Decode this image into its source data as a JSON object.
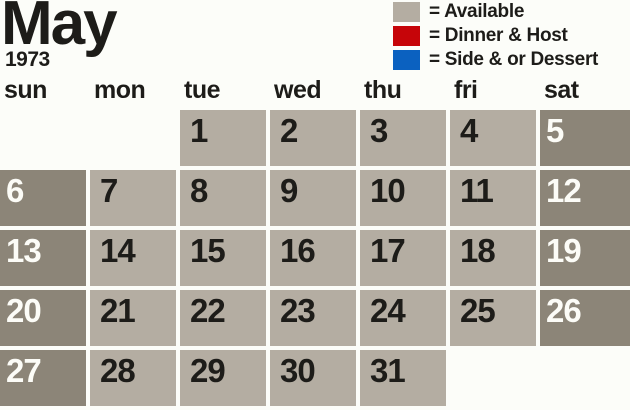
{
  "title": {
    "month": "May",
    "year": "1973"
  },
  "legend": {
    "items": [
      {
        "key": "available",
        "color": "#b4ada2",
        "label": "= Available"
      },
      {
        "key": "dinner-host",
        "color": "#c60509",
        "label": "= Dinner & Host"
      },
      {
        "key": "side-dessert",
        "color": "#0b61c0",
        "label": "= Side & or Dessert"
      }
    ]
  },
  "weekdays": [
    "sun",
    "mon",
    "tue",
    "wed",
    "thu",
    "fri",
    "sat"
  ],
  "colors": {
    "background": "#fcfdf9",
    "weekday_cell": "#b4ada2",
    "weekend_cell": "#8c8578",
    "weekday_text": "#1d1c19",
    "weekend_text": "#fcfcf7",
    "heading_text": "#1d1c19"
  },
  "calendar": {
    "month_name": "May",
    "year": "1973",
    "all_days_status": "Available",
    "cells": [
      {
        "type": "empty"
      },
      {
        "type": "empty"
      },
      {
        "day": "1",
        "type": "weekday",
        "status": "available"
      },
      {
        "day": "2",
        "type": "weekday",
        "status": "available"
      },
      {
        "day": "3",
        "type": "weekday",
        "status": "available"
      },
      {
        "day": "4",
        "type": "weekday",
        "status": "available"
      },
      {
        "day": "5",
        "type": "weekend",
        "status": "available"
      },
      {
        "day": "6",
        "type": "weekend",
        "status": "available"
      },
      {
        "day": "7",
        "type": "weekday",
        "status": "available"
      },
      {
        "day": "8",
        "type": "weekday",
        "status": "available"
      },
      {
        "day": "9",
        "type": "weekday",
        "status": "available"
      },
      {
        "day": "10",
        "type": "weekday",
        "status": "available"
      },
      {
        "day": "11",
        "type": "weekday",
        "status": "available"
      },
      {
        "day": "12",
        "type": "weekend",
        "status": "available"
      },
      {
        "day": "13",
        "type": "weekend",
        "status": "available"
      },
      {
        "day": "14",
        "type": "weekday",
        "status": "available"
      },
      {
        "day": "15",
        "type": "weekday",
        "status": "available"
      },
      {
        "day": "16",
        "type": "weekday",
        "status": "available"
      },
      {
        "day": "17",
        "type": "weekday",
        "status": "available"
      },
      {
        "day": "18",
        "type": "weekday",
        "status": "available"
      },
      {
        "day": "19",
        "type": "weekend",
        "status": "available"
      },
      {
        "day": "20",
        "type": "weekend",
        "status": "available"
      },
      {
        "day": "21",
        "type": "weekday",
        "status": "available"
      },
      {
        "day": "22",
        "type": "weekday",
        "status": "available"
      },
      {
        "day": "23",
        "type": "weekday",
        "status": "available"
      },
      {
        "day": "24",
        "type": "weekday",
        "status": "available"
      },
      {
        "day": "25",
        "type": "weekday",
        "status": "available"
      },
      {
        "day": "26",
        "type": "weekend",
        "status": "available"
      },
      {
        "day": "27",
        "type": "weekend",
        "status": "available"
      },
      {
        "day": "28",
        "type": "weekday",
        "status": "available"
      },
      {
        "day": "29",
        "type": "weekday",
        "status": "available"
      },
      {
        "day": "30",
        "type": "weekday",
        "status": "available"
      },
      {
        "day": "31",
        "type": "weekday",
        "status": "available"
      },
      {
        "type": "empty"
      },
      {
        "type": "empty"
      }
    ]
  }
}
